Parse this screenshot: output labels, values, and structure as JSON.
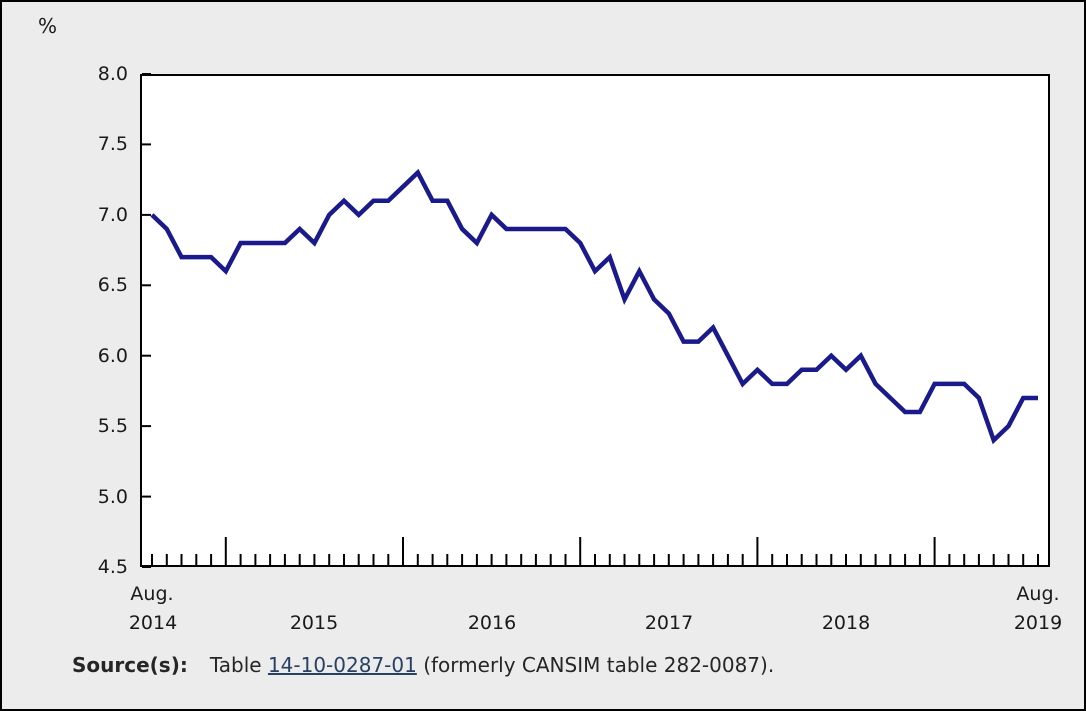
{
  "colors": {
    "line": "#1a1a8c",
    "background": "#ececec",
    "plot_background": "#ffffff",
    "axis": "#000000",
    "link": "#284162",
    "text": "#1a1a1a"
  },
  "chart_data": {
    "type": "line",
    "title": "",
    "ylabel": "%",
    "ylim": [
      4.5,
      8.0
    ],
    "ytick_labels": [
      "8.0",
      "7.5",
      "7.0",
      "6.5",
      "6.0",
      "5.5",
      "5.0",
      "4.5"
    ],
    "grid": false,
    "legend": "none",
    "x_axis": {
      "frequency": "monthly",
      "start_label": [
        "Aug.",
        "2014"
      ],
      "year_labels": [
        "2015",
        "2016",
        "2017",
        "2018"
      ],
      "end_label": [
        "Aug.",
        "2019"
      ],
      "january_tick_indices": [
        5,
        17,
        29,
        41,
        53
      ]
    },
    "values": [
      7.0,
      6.9,
      6.7,
      6.7,
      6.7,
      6.6,
      6.8,
      6.8,
      6.8,
      6.8,
      6.9,
      6.8,
      7.0,
      7.1,
      7.0,
      7.1,
      7.1,
      7.2,
      7.3,
      7.1,
      7.1,
      6.9,
      6.8,
      7.0,
      6.9,
      6.9,
      6.9,
      6.9,
      6.9,
      6.8,
      6.6,
      6.7,
      6.4,
      6.6,
      6.4,
      6.3,
      6.1,
      6.1,
      6.2,
      6.0,
      5.8,
      5.9,
      5.8,
      5.8,
      5.9,
      5.9,
      6.0,
      5.9,
      6.0,
      5.8,
      5.7,
      5.6,
      5.6,
      5.8,
      5.8,
      5.8,
      5.7,
      5.4,
      5.5,
      5.7,
      5.7
    ]
  },
  "source": {
    "label": "Source(s):",
    "text_before_link": "Table ",
    "link_text": "14-10-0287-01",
    "text_after_link": " (formerly CANSIM table 282-0087)."
  }
}
